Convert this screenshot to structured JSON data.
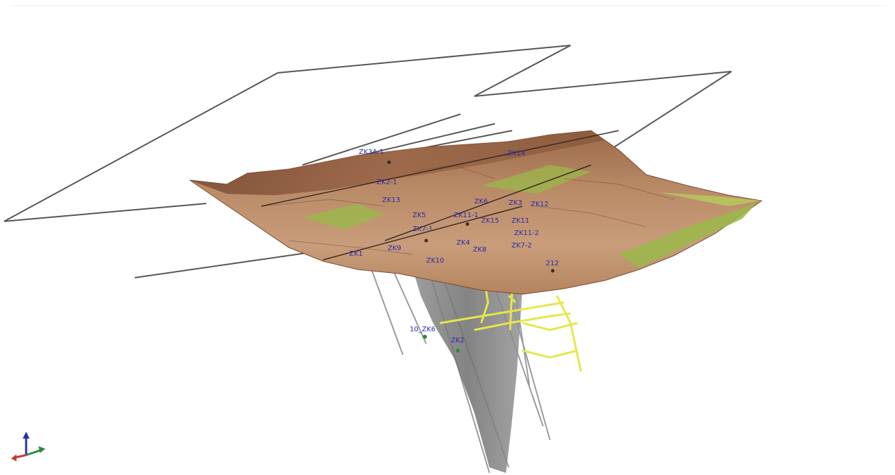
{
  "scene": {
    "background_color": "#ffffff",
    "terrain_colors": [
      "#8c5a3c",
      "#b07c5a",
      "#c89a78",
      "#9ab84a"
    ],
    "orebody_color": "#7c7c7c",
    "tunnel_color": "#e6e64a",
    "boundary_line_color": "#555555",
    "label_color": "#2a2aa8",
    "axis_icon": "xyz-axis-triad-icon"
  },
  "labels": {
    "drillholes": [
      "ZK3A-1",
      "ZK2-1",
      "ZK5",
      "ZK11-1",
      "ZK7-1",
      "ZK1",
      "ZK9",
      "ZK10",
      "ZK4",
      "ZK8",
      "ZK6",
      "ZK3",
      "ZK12",
      "ZK11",
      "ZK11-2",
      "ZK7-2",
      "ZK13",
      "ZK14",
      "ZK15",
      "212",
      "10_ZK6",
      "ZK2"
    ]
  }
}
